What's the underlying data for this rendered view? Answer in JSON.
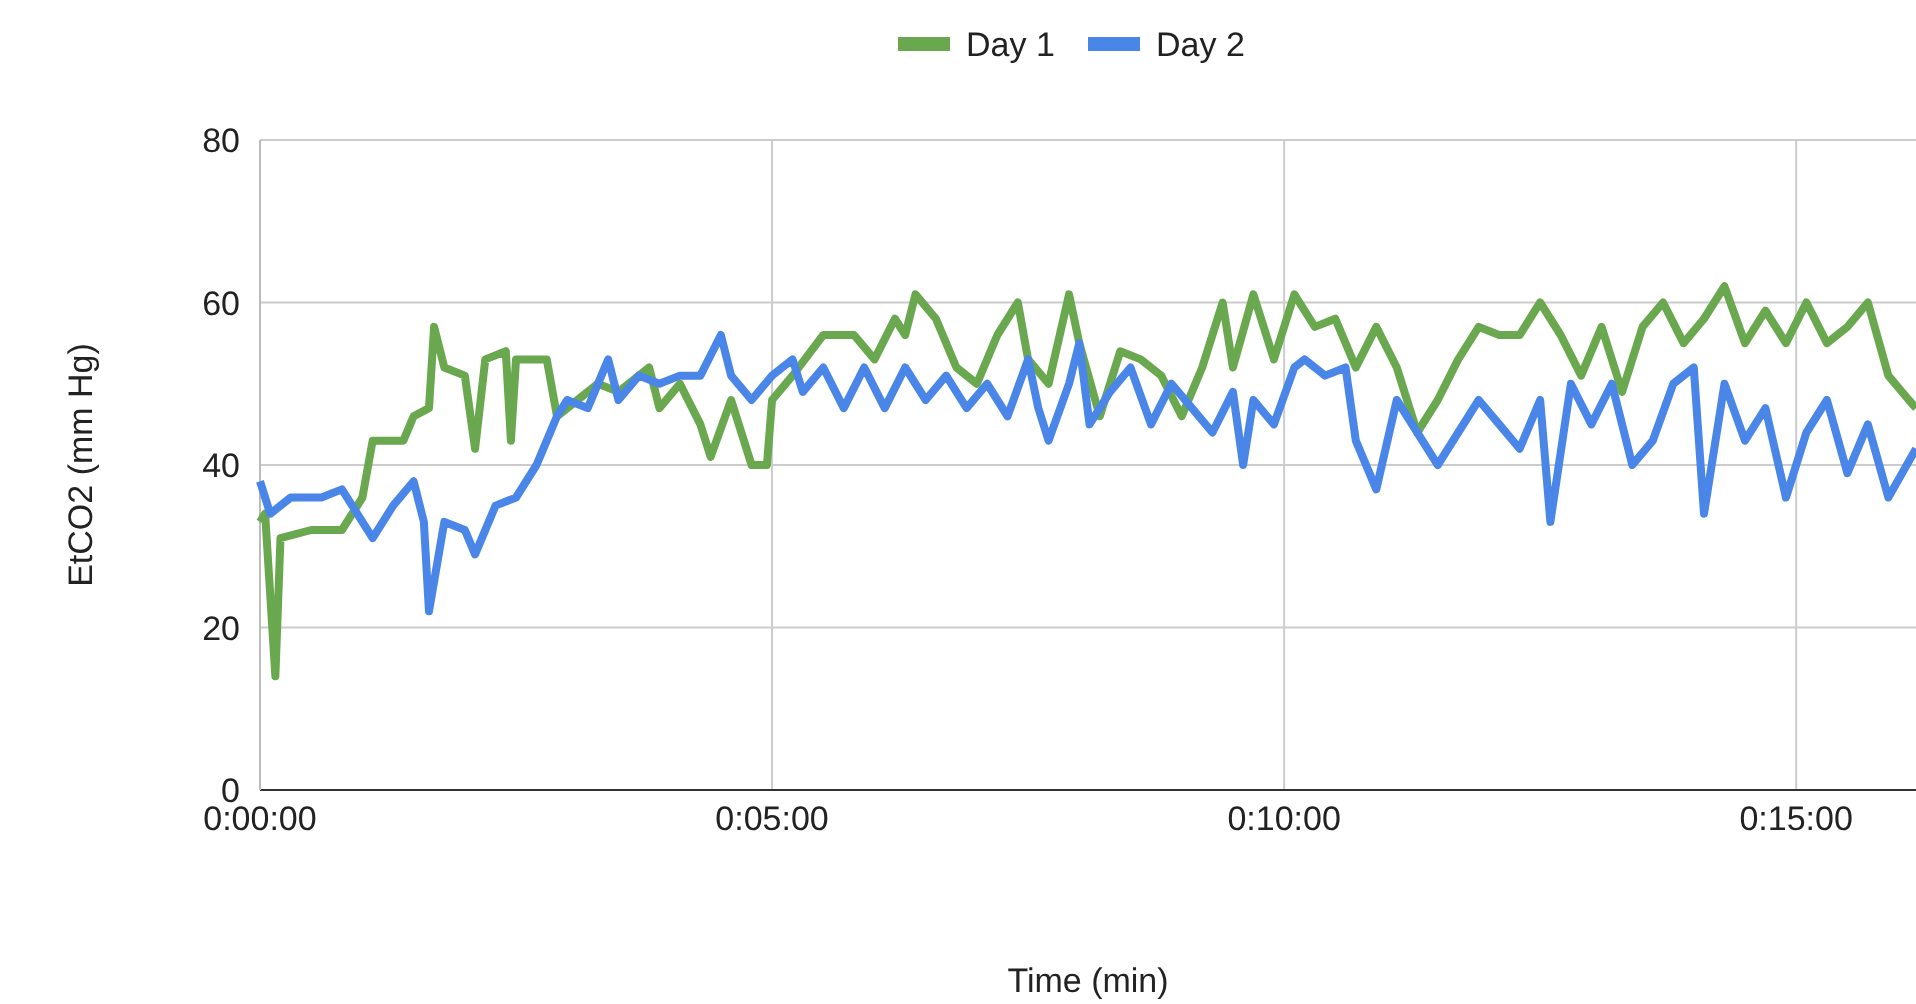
{
  "chart_data": {
    "type": "line",
    "xlabel": "Time (min)",
    "ylabel": "EtCO2 (mm Hg)",
    "xlim": [
      0,
      16.17
    ],
    "ylim": [
      0,
      80
    ],
    "xticks": [
      {
        "value": 0,
        "label": "0:00:00"
      },
      {
        "value": 5,
        "label": "0:05:00"
      },
      {
        "value": 10,
        "label": "0:10:00"
      },
      {
        "value": 15,
        "label": "0:15:00"
      }
    ],
    "yticks": [
      0,
      20,
      40,
      60,
      80
    ],
    "grid": true,
    "legend": "top",
    "line_style": "solid",
    "marker": "none",
    "series": [
      {
        "name": "Day 1",
        "color": "#6aa84f",
        "x": [
          0,
          0.05,
          0.15,
          0.2,
          0.5,
          0.8,
          1.0,
          1.1,
          1.4,
          1.5,
          1.65,
          1.7,
          1.8,
          2.0,
          2.1,
          2.2,
          2.4,
          2.45,
          2.5,
          2.8,
          2.9,
          3.1,
          3.3,
          3.5,
          3.8,
          3.9,
          4.1,
          4.3,
          4.4,
          4.6,
          4.7,
          4.8,
          4.95,
          5.0,
          5.2,
          5.5,
          5.8,
          6.0,
          6.2,
          6.3,
          6.4,
          6.6,
          6.8,
          7.0,
          7.2,
          7.4,
          7.5,
          7.7,
          7.9,
          8.0,
          8.2,
          8.4,
          8.6,
          8.8,
          9.0,
          9.2,
          9.4,
          9.5,
          9.7,
          9.9,
          10.1,
          10.3,
          10.5,
          10.7,
          10.9,
          11.1,
          11.3,
          11.5,
          11.7,
          11.9,
          12.1,
          12.3,
          12.5,
          12.7,
          12.9,
          13.1,
          13.3,
          13.5,
          13.7,
          13.9,
          14.1,
          14.3,
          14.5,
          14.7,
          14.9,
          15.1,
          15.3,
          15.5,
          15.7,
          15.9,
          16.1,
          16.17
        ],
        "values": [
          33,
          34,
          14,
          31,
          32,
          32,
          36,
          43,
          43,
          46,
          47,
          57,
          52,
          51,
          42,
          53,
          54,
          43,
          53,
          53,
          46,
          48,
          50,
          49,
          52,
          47,
          50,
          45,
          41,
          48,
          44,
          40,
          40,
          48,
          51,
          56,
          56,
          53,
          58,
          56,
          61,
          58,
          52,
          50,
          56,
          60,
          53,
          50,
          61,
          55,
          46,
          54,
          53,
          51,
          46,
          52,
          60,
          52,
          61,
          53,
          61,
          57,
          58,
          52,
          57,
          52,
          44,
          48,
          53,
          57,
          56,
          56,
          60,
          56,
          51,
          57,
          49,
          57,
          60,
          55,
          58,
          62,
          55,
          59,
          55,
          60,
          55,
          57,
          60,
          51,
          48,
          47
        ]
      },
      {
        "name": "Day 2",
        "color": "#4a86e8",
        "x": [
          0,
          0.1,
          0.3,
          0.6,
          0.8,
          1.0,
          1.1,
          1.3,
          1.5,
          1.6,
          1.65,
          1.8,
          2.0,
          2.1,
          2.3,
          2.5,
          2.7,
          2.8,
          2.9,
          3.0,
          3.2,
          3.4,
          3.5,
          3.7,
          3.9,
          4.1,
          4.3,
          4.5,
          4.6,
          4.8,
          5.0,
          5.2,
          5.3,
          5.5,
          5.7,
          5.9,
          6.1,
          6.3,
          6.5,
          6.7,
          6.9,
          7.1,
          7.3,
          7.5,
          7.6,
          7.7,
          7.9,
          8.0,
          8.1,
          8.3,
          8.5,
          8.7,
          8.9,
          9.1,
          9.3,
          9.5,
          9.6,
          9.7,
          9.9,
          10.1,
          10.2,
          10.4,
          10.6,
          10.7,
          10.9,
          11.1,
          11.3,
          11.5,
          11.7,
          11.9,
          12.1,
          12.3,
          12.5,
          12.6,
          12.8,
          13.0,
          13.2,
          13.4,
          13.6,
          13.8,
          14.0,
          14.1,
          14.3,
          14.5,
          14.7,
          14.9,
          15.1,
          15.3,
          15.5,
          15.7,
          15.9,
          16.17
        ],
        "values": [
          38,
          34,
          36,
          36,
          37,
          33,
          31,
          35,
          38,
          33,
          22,
          33,
          32,
          29,
          35,
          36,
          40,
          43,
          46,
          48,
          47,
          53,
          48,
          51,
          50,
          51,
          51,
          56,
          51,
          48,
          51,
          53,
          49,
          52,
          47,
          52,
          47,
          52,
          48,
          51,
          47,
          50,
          46,
          53,
          47,
          43,
          50,
          55,
          45,
          49,
          52,
          45,
          50,
          47,
          44,
          49,
          40,
          48,
          45,
          52,
          53,
          51,
          52,
          43,
          37,
          48,
          44,
          40,
          44,
          48,
          45,
          42,
          48,
          33,
          50,
          45,
          50,
          40,
          43,
          50,
          52,
          34,
          50,
          43,
          47,
          36,
          44,
          48,
          39,
          45,
          36,
          42
        ]
      }
    ]
  }
}
